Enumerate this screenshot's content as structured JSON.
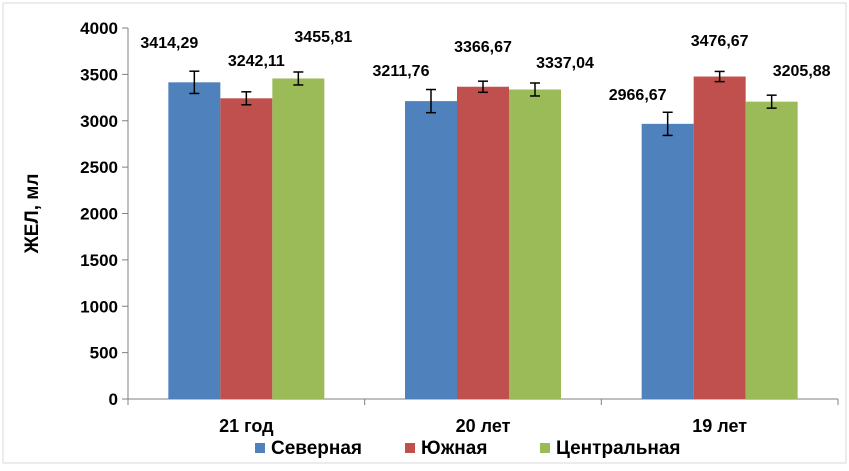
{
  "chart_data": {
    "type": "bar",
    "title": "",
    "xlabel": "",
    "ylabel": "ЖЕЛ, мл",
    "ylim": [
      0,
      4000
    ],
    "yticks": [
      "0",
      "500",
      "1000",
      "1500",
      "2000",
      "2500",
      "3000",
      "3500",
      "4000"
    ],
    "grid": false,
    "legend_position": "bottom",
    "categories": [
      "21 год",
      "20 лет",
      "19 лет"
    ],
    "series": [
      {
        "name": "Северная",
        "color": "#4f81bd",
        "values": [
          3414.29,
          3211.76,
          2966.67
        ],
        "labels": [
          "3414,29",
          "3211,76",
          "2966,67"
        ],
        "errors": [
          120,
          125,
          125
        ]
      },
      {
        "name": "Южная",
        "color": "#c0504d",
        "values": [
          3242.11,
          3366.67,
          3476.67
        ],
        "labels": [
          "3242,11",
          "3366,67",
          "3476,67"
        ],
        "errors": [
          70,
          60,
          55
        ]
      },
      {
        "name": "Центральная",
        "color": "#9bbb59",
        "values": [
          3455.81,
          3337.04,
          3205.88
        ],
        "labels": [
          "3455,81",
          "3337,04",
          "3205,88"
        ],
        "errors": [
          70,
          70,
          70
        ]
      }
    ]
  }
}
